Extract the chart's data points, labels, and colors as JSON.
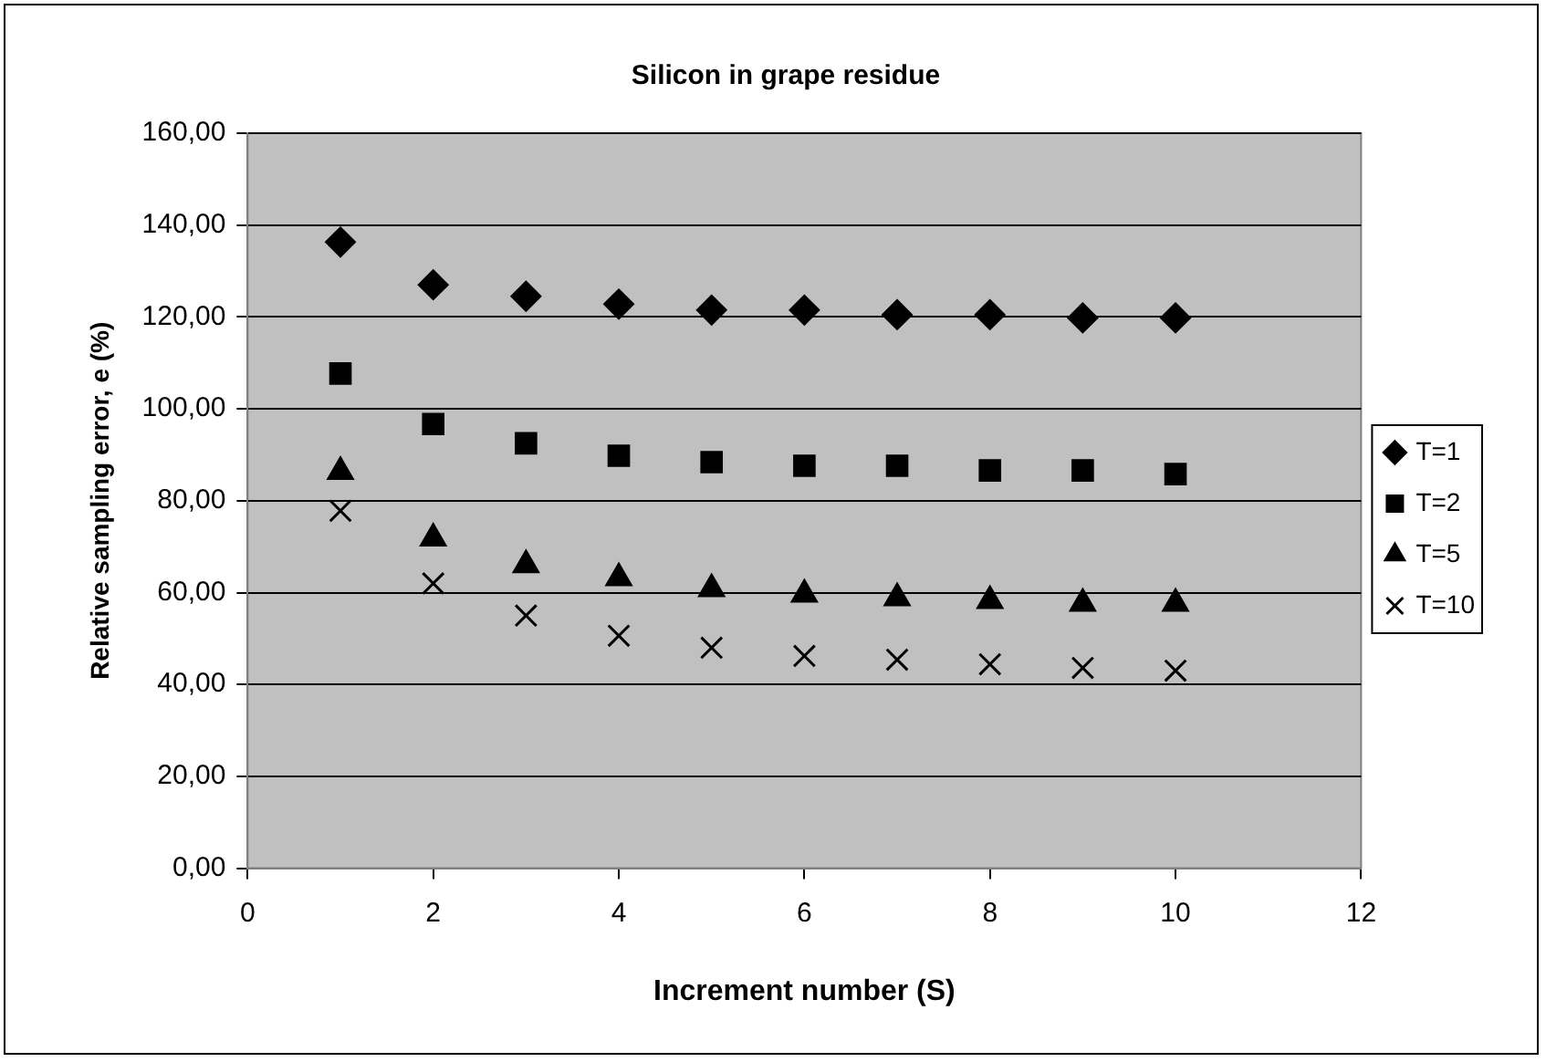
{
  "chart_data": {
    "type": "scatter",
    "title": "Silicon in grape residue",
    "xlabel": "Increment number (S)",
    "ylabel": "Relative sampling error, e (%)",
    "x": [
      1,
      2,
      3,
      4,
      5,
      6,
      7,
      8,
      9,
      10
    ],
    "series": [
      {
        "name": "T=1",
        "color": "#000000",
        "marker": "diamond",
        "values": [
          136.3,
          127,
          124.5,
          122.8,
          121.5,
          121.5,
          120.5,
          120.5,
          119.8,
          119.8
        ]
      },
      {
        "name": "T=2",
        "color": "#000000",
        "marker": "square",
        "values": [
          107.7,
          96.7,
          92.5,
          89.8,
          88.4,
          87.6,
          87.6,
          86.6,
          86.6,
          85.8
        ]
      },
      {
        "name": "T=5",
        "color": "#000000",
        "marker": "triangle",
        "values": [
          86.3,
          71.8,
          66,
          63.2,
          60.8,
          59.6,
          58.8,
          58.2,
          57.6,
          57.6
        ]
      },
      {
        "name": "T=10",
        "color": "#000000",
        "marker": "cross",
        "values": [
          77.8,
          62,
          55,
          50.6,
          48,
          46.2,
          45.4,
          44.4,
          43.6,
          43
        ]
      }
    ],
    "xlim": [
      0,
      12
    ],
    "xticks": [
      0,
      2,
      4,
      6,
      8,
      10,
      12
    ],
    "ylim": [
      0,
      160
    ],
    "yticks": [
      {
        "value": 0,
        "label": "0,00"
      },
      {
        "value": 20,
        "label": "20,00"
      },
      {
        "value": 40,
        "label": "40,00"
      },
      {
        "value": 60,
        "label": "60,00"
      },
      {
        "value": 80,
        "label": "80,00"
      },
      {
        "value": 100,
        "label": "100,00"
      },
      {
        "value": 120,
        "label": "120,00"
      },
      {
        "value": 140,
        "label": "140,00"
      },
      {
        "value": 160,
        "label": "160,00"
      }
    ],
    "grid": "y",
    "legend": "right"
  }
}
